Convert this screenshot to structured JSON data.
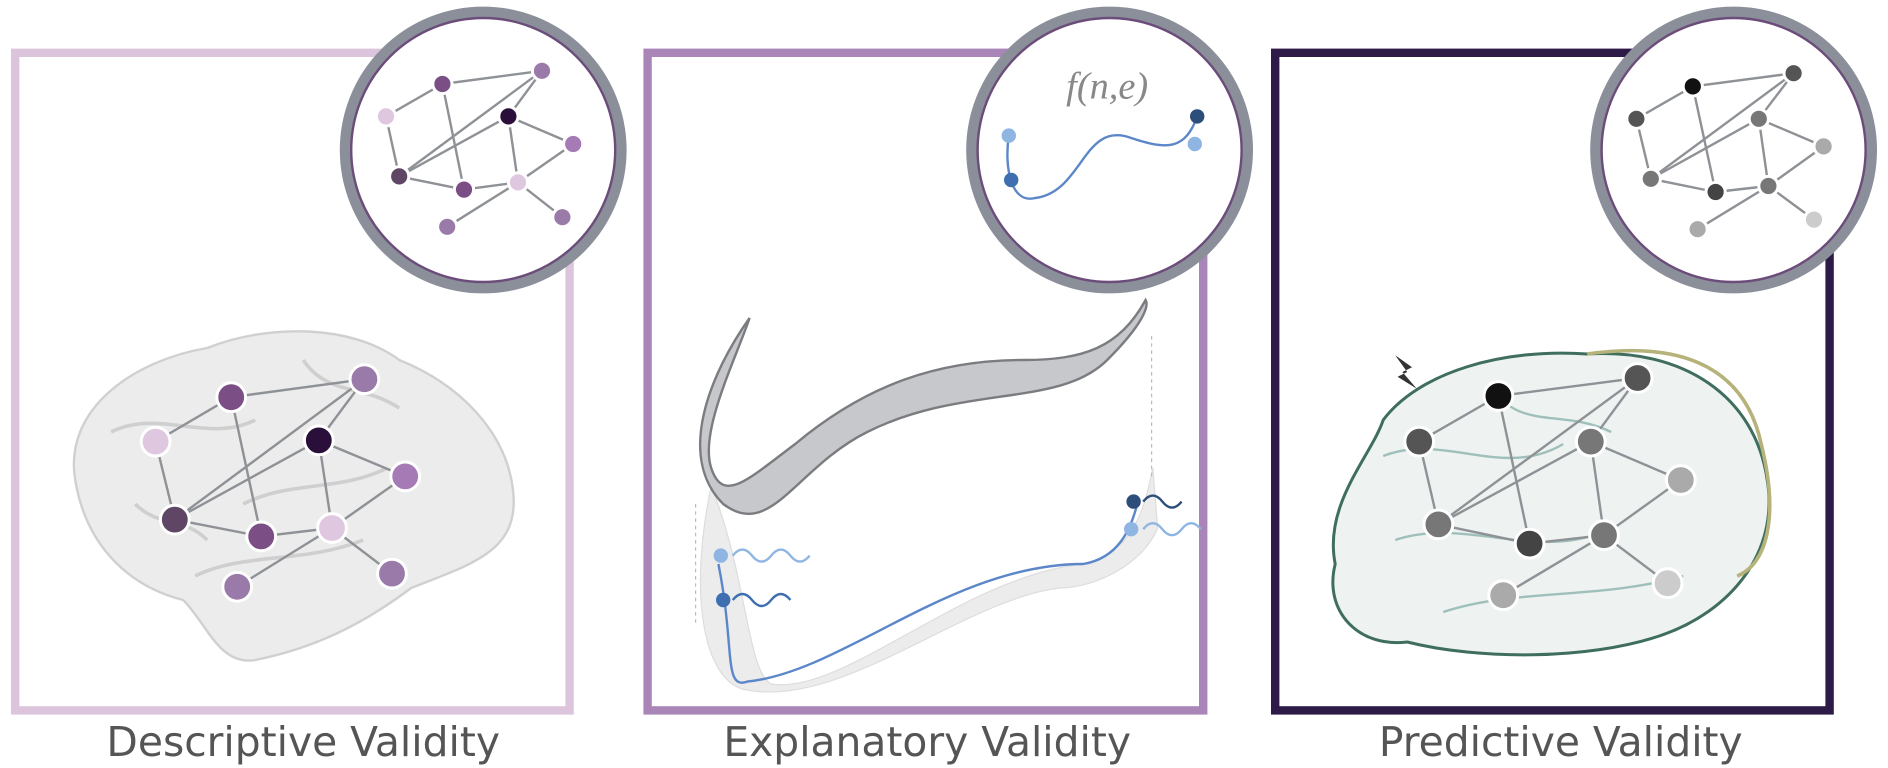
{
  "panels": [
    {
      "label": "Descriptive Validity"
    },
    {
      "label": "Explanatory Validity",
      "formula": "f(n,e)"
    },
    {
      "label": "Predictive Validity"
    }
  ]
}
